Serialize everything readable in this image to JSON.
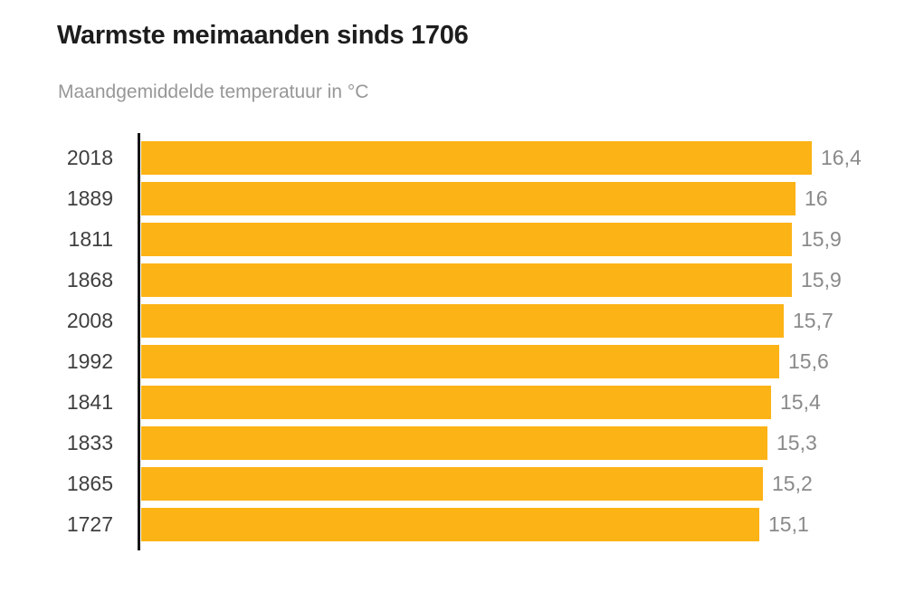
{
  "header": {
    "title": "Warmste meimaanden sinds 1706",
    "subtitle": "Maandgemiddelde temperatuur in °C"
  },
  "chart_data": {
    "type": "bar",
    "orientation": "horizontal",
    "title": "Warmste meimaanden sinds 1706",
    "subtitle": "Maandgemiddelde temperatuur in °C",
    "xlabel": "",
    "ylabel": "",
    "categories": [
      "2018",
      "1889",
      "1811",
      "1868",
      "2008",
      "1992",
      "1841",
      "1833",
      "1865",
      "1727"
    ],
    "values": [
      16.4,
      16,
      15.9,
      15.9,
      15.7,
      15.6,
      15.4,
      15.3,
      15.2,
      15.1
    ],
    "value_labels": [
      "16,4",
      "16",
      "15,9",
      "15,9",
      "15,7",
      "15,6",
      "15,4",
      "15,3",
      "15,2",
      "15,1"
    ],
    "xlim": [
      0,
      16.4
    ],
    "grid": false,
    "legend": false,
    "bar_color": "#fcb316",
    "axis_color": "#161616",
    "value_label_color": "#8a8a8a",
    "category_label_color": "#3f3f3f"
  }
}
